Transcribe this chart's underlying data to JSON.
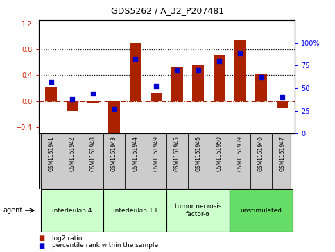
{
  "title": "GDS5262 / A_32_P207481",
  "samples": [
    "GSM1151941",
    "GSM1151942",
    "GSM1151948",
    "GSM1151943",
    "GSM1151944",
    "GSM1151949",
    "GSM1151945",
    "GSM1151946",
    "GSM1151950",
    "GSM1151939",
    "GSM1151940",
    "GSM1151947"
  ],
  "log2_ratio": [
    0.22,
    -0.15,
    -0.02,
    -0.5,
    0.9,
    0.13,
    0.52,
    0.55,
    0.72,
    0.95,
    0.42,
    -0.1
  ],
  "percentile": [
    57,
    38,
    44,
    27,
    82,
    52,
    70,
    70,
    80,
    88,
    62,
    40
  ],
  "agents": [
    {
      "label": "interleukin 4",
      "indices": [
        0,
        1,
        2
      ],
      "color": "#ccffcc"
    },
    {
      "label": "interleukin 13",
      "indices": [
        3,
        4,
        5
      ],
      "color": "#ccffcc"
    },
    {
      "label": "tumor necrosis\nfactor-α",
      "indices": [
        6,
        7,
        8
      ],
      "color": "#ccffcc"
    },
    {
      "label": "unstimulated",
      "indices": [
        9,
        10,
        11
      ],
      "color": "#66dd66"
    }
  ],
  "bar_color": "#aa2200",
  "dot_color": "#0000cc",
  "ylim_left": [
    -0.5,
    1.25
  ],
  "ylim_right": [
    0,
    125
  ],
  "yticks_left": [
    -0.4,
    0.0,
    0.4,
    0.8,
    1.2
  ],
  "yticks_right": [
    0,
    25,
    50,
    75,
    100
  ],
  "hlines": [
    0.4,
    0.8
  ],
  "hline_zero": 0.0,
  "bg_color": "#ffffff",
  "plot_bg": "#ffffff",
  "agent_label": "agent",
  "sample_box_color": "#cccccc",
  "bar_width": 0.55
}
